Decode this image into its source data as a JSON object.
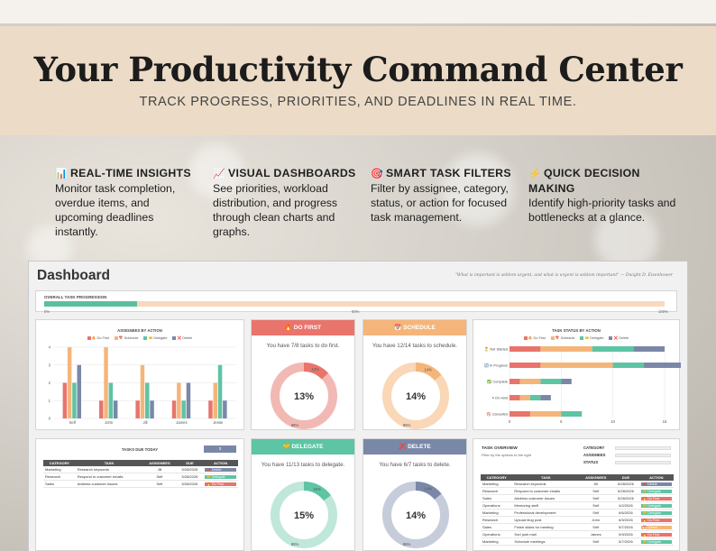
{
  "banner": {
    "title": "Your Productivity Command Center",
    "subtitle": "TRACK PROGRESS, PRIORITIES, AND DEADLINES IN REAL TIME."
  },
  "features": [
    {
      "icon": "📊",
      "title": "REAL-TIME INSIGHTS",
      "text": "Monitor task completion, overdue items, and upcoming deadlines instantly."
    },
    {
      "icon": "📈",
      "title": "VISUAL DASHBOARDS",
      "text": "See priorities, workload distribution, and progress through clean charts and graphs."
    },
    {
      "icon": "🎯",
      "title": "SMART TASK FILTERS",
      "text": "Filter by assignee, category, status, or action for focused task management."
    },
    {
      "icon": "⚡",
      "title": "QUICK DECISION MAKING",
      "text": "Identify high-priority tasks and bottlenecks at a glance."
    }
  ],
  "dashboard": {
    "title": "Dashboard",
    "quote": "\"What is important is seldom urgent, and what is urgent is seldom important\" — Dwight D. Eisenhower",
    "progress": {
      "label": "OVERALL TASK PROGRESSION",
      "value": 0.15,
      "ticks": [
        "0%",
        "50%",
        "100%"
      ]
    },
    "colors": {
      "do_first": "#e8746c",
      "schedule": "#f5b57a",
      "delegate": "#5dc4a4",
      "delete": "#7a88a8"
    },
    "donuts": [
      {
        "key": "do_first",
        "head": "🔥 DO FIRST",
        "text": "You have 7/8 tasks to do first.",
        "center": "13%",
        "done_label": "13%",
        "rest_label": "88%",
        "value": 0.13,
        "head_color": "#e8746c",
        "ring_bg": "#f2b9b4",
        "ring_fg": "#e8746c"
      },
      {
        "key": "schedule",
        "head": "📅 SCHEDULE",
        "text": "You have 12/14 tasks to schedule.",
        "center": "14%",
        "done_label": "14%",
        "rest_label": "86%",
        "value": 0.14,
        "head_color": "#f5b57a",
        "ring_bg": "#f9d7b7",
        "ring_fg": "#f5b57a"
      },
      {
        "key": "delegate",
        "head": "🤝 DELEGATE",
        "text": "You have 11/13 tasks to delegate.",
        "center": "15%",
        "done_label": "15%",
        "rest_label": "85%",
        "value": 0.15,
        "head_color": "#5dc4a4",
        "ring_bg": "#bfe7da",
        "ring_fg": "#5dc4a4"
      },
      {
        "key": "delete",
        "head": "❌ DELETE",
        "text": "You have 6/7 tasks to delete.",
        "center": "14%",
        "done_label": "14%",
        "rest_label": "86%",
        "value": 0.14,
        "head_color": "#7a88a8",
        "ring_bg": "#c6ccda",
        "ring_fg": "#7a88a8"
      }
    ],
    "due_today": {
      "title": "TASKS DUE TODAY",
      "count": "3",
      "headers": [
        "CATEGORY",
        "TASK",
        "ASSIGNEES",
        "DUE",
        "ACTION"
      ],
      "rows": [
        [
          "Marketing",
          "Research keywords",
          "Jill",
          "5/28/2026",
          "❌ Delete"
        ],
        [
          "Research",
          "Respond to customer emails",
          "Self",
          "5/28/2026",
          "🤝 Delegate"
        ],
        [
          "Sales",
          "Address customer issues",
          "Self",
          "5/28/2026",
          "🔥 Do First"
        ]
      ]
    },
    "overview": {
      "title": "TASK OVERVIEW",
      "subtitle": "Filter by the options to the right",
      "filters": [
        "CATEGORY",
        "ASSIGNEES",
        "STATUS"
      ],
      "headers": [
        "CATEGORY",
        "TASK",
        "ASSIGNEES",
        "DUE",
        "ACTION"
      ],
      "rows": [
        [
          "Marketing",
          "Research keywords",
          "Jill",
          "5/28/2026",
          "❌ Delete"
        ],
        [
          "Research",
          "Respond to customer emails",
          "Self",
          "5/28/2026",
          "🤝 Delegate"
        ],
        [
          "Sales",
          "Address customer issues",
          "Self",
          "5/28/2026",
          "🔥 Do First"
        ],
        [
          "Operations",
          "Mentoring staff",
          "Self",
          "4/2/2026",
          "🤝 Delegate"
        ],
        [
          "Marketing",
          "Professional development",
          "Self",
          "6/6/2026",
          "🤝 Delegate"
        ],
        [
          "Research",
          "Upload blog post",
          "John",
          "6/9/2026",
          "🔥 Do First"
        ],
        [
          "Sales",
          "Finish slides for meeting",
          "Self",
          "5/7/2026",
          "📅 Sched..."
        ],
        [
          "Operations",
          "Sort junk mail",
          "James",
          "5/9/2026",
          "🔥 Do First"
        ],
        [
          "Marketing",
          "Schedule meetings",
          "Self",
          "5/7/2026",
          "🤝 Delegate"
        ]
      ]
    }
  },
  "chart_data": [
    {
      "type": "bar",
      "title": "ASSIGNEES BY ACTION",
      "categories": [
        "Self",
        "John",
        "Jill",
        "James",
        "Jesse"
      ],
      "series": [
        {
          "name": "🔥 Do First",
          "values": [
            2,
            1,
            1,
            1,
            1
          ]
        },
        {
          "name": "📅 Schedule",
          "values": [
            4,
            4,
            3,
            2,
            2
          ]
        },
        {
          "name": "🤝 Delegate",
          "values": [
            2,
            2,
            2,
            1,
            3
          ]
        },
        {
          "name": "❌ Delete",
          "values": [
            3,
            1,
            1,
            2,
            1
          ]
        }
      ],
      "ylim": [
        0,
        4
      ],
      "yticks": [
        0,
        1,
        2,
        3,
        4
      ],
      "legend": "top",
      "grid": true
    },
    {
      "type": "bar",
      "orientation": "horizontal",
      "stacked": true,
      "title": "TASK STATUS BY ACTION",
      "categories": [
        "⏳ Not Started",
        "🔄 In Progress",
        "✅ Complete",
        "⏸ On Hold",
        "🚫 Cancelled"
      ],
      "series": [
        {
          "name": "🔥 Do First",
          "values": [
            3,
            3,
            1,
            1,
            2
          ]
        },
        {
          "name": "📅 Schedule",
          "values": [
            5,
            7,
            2,
            1,
            3
          ]
        },
        {
          "name": "🤝 Delegate",
          "values": [
            4,
            3,
            2,
            1,
            2
          ]
        },
        {
          "name": "❌ Delete",
          "values": [
            3,
            4,
            1,
            1,
            0
          ]
        }
      ],
      "xlim": [
        0,
        15
      ],
      "xticks": [
        0,
        5,
        10,
        15
      ],
      "legend": "top",
      "grid": true
    }
  ]
}
